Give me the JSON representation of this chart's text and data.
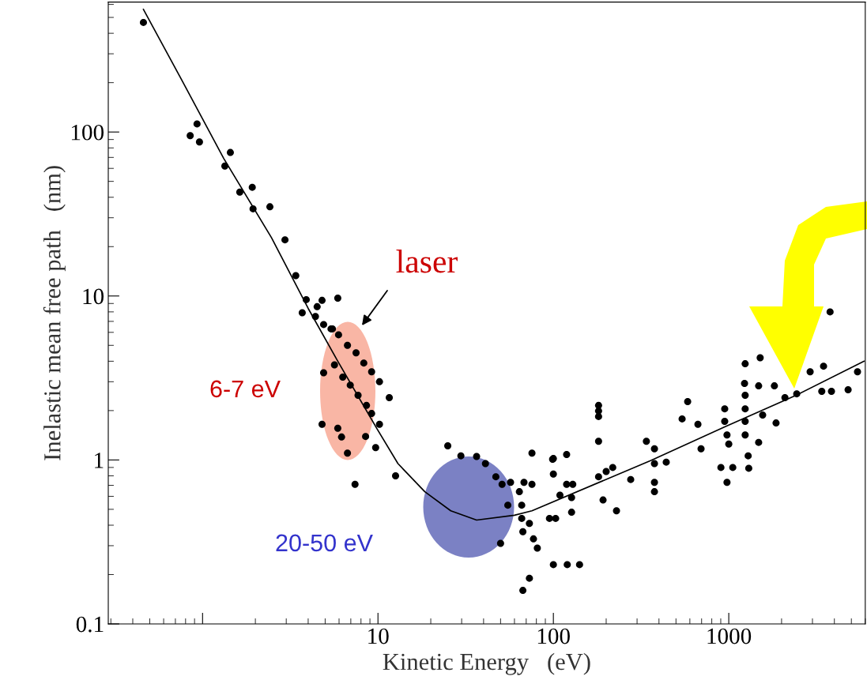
{
  "chart_data": {
    "type": "scatter",
    "xlabel": "Kinetic Energy   (eV)",
    "ylabel": "Inelastic mean free path   (nm)",
    "log": "xy",
    "xlim": [
      0.29,
      6000
    ],
    "ylim": [
      0.1,
      620
    ],
    "xticks": [
      {
        "value": 1,
        "label": null
      },
      10,
      100,
      1000
    ],
    "yticks": [
      0.1,
      1,
      10,
      100
    ],
    "grid": false,
    "legend": false,
    "marker": "circle",
    "series": [
      {
        "color": "#000000",
        "x": [
          0.46,
          0.93,
          0.85,
          0.96,
          1.44,
          1.34,
          1.63,
          1.92,
          1.94,
          2.42,
          2.95,
          3.4,
          3.9,
          3.7,
          4.8,
          5.9,
          4.5,
          4.4,
          4.9,
          5.4,
          5.5,
          5.96,
          6.7,
          7.5,
          8.3,
          9.2,
          10.2,
          11.6,
          4.9,
          5.65,
          6.3,
          6.95,
          7.7,
          8.6,
          9.2,
          10.2,
          4.8,
          5.9,
          6.2,
          8.5,
          6.7,
          9.7,
          7.4,
          12.6,
          25,
          29.7,
          36.5,
          41,
          47,
          51,
          55,
          50,
          57,
          64,
          66,
          66,
          67,
          68,
          75.5,
          73,
          77,
          81,
          75.5,
          100,
          120,
          141,
          73,
          67,
          100,
          119,
          100,
          119,
          129,
          109,
          127,
          95,
          103,
          127,
          181,
          181,
          192,
          181,
          99,
          181,
          181,
          200,
          218,
          229,
          276,
          339,
          377,
          377,
          440,
          377,
          377,
          583,
          542,
          667,
          695,
          948,
          948,
          977,
          1000,
          902,
          1054,
          977,
          1230,
          1240,
          1240,
          1240,
          1240,
          1290,
          1300,
          1480,
          1560,
          1480,
          1820,
          1860,
          2090,
          2440,
          2910,
          3470,
          3390,
          3850,
          4790,
          5420,
          1510,
          1240,
          3780
        ],
        "values": [
          466,
          112,
          95,
          87,
          75,
          62,
          43,
          46,
          34,
          35,
          22,
          13.3,
          9.5,
          7.9,
          9.4,
          9.7,
          8.6,
          7.5,
          6.7,
          6.3,
          6.3,
          5.8,
          5.0,
          4.5,
          3.9,
          3.45,
          3.0,
          2.4,
          3.4,
          3.8,
          3.2,
          2.86,
          2.48,
          2.15,
          1.92,
          1.65,
          1.65,
          1.56,
          1.38,
          1.39,
          1.1,
          1.19,
          0.71,
          0.8,
          1.22,
          1.06,
          1.05,
          0.95,
          0.79,
          0.71,
          0.53,
          0.31,
          0.73,
          0.64,
          0.53,
          0.44,
          0.365,
          0.73,
          0.71,
          0.41,
          0.33,
          0.29,
          1.1,
          0.23,
          0.23,
          0.23,
          0.19,
          0.16,
          1.02,
          1.08,
          0.82,
          0.71,
          0.71,
          0.61,
          0.59,
          0.44,
          0.44,
          0.48,
          1.99,
          1.3,
          0.57,
          0.79,
          1.01,
          2.15,
          1.84,
          0.85,
          0.9,
          0.49,
          0.76,
          1.3,
          1.17,
          0.95,
          0.97,
          0.73,
          0.64,
          2.27,
          1.78,
          1.65,
          1.17,
          2.05,
          1.72,
          1.42,
          1.25,
          0.9,
          0.9,
          0.73,
          2.93,
          2.48,
          2.05,
          1.72,
          1.42,
          1.06,
          0.89,
          2.83,
          1.88,
          1.28,
          2.83,
          1.68,
          2.4,
          2.53,
          3.45,
          3.73,
          2.62,
          2.62,
          2.68,
          3.45,
          4.2,
          3.86,
          8.0
        ]
      },
      {
        "type": "line",
        "color": "#000000",
        "marker": "none",
        "line_style": "solid",
        "x": [
          0.46,
          0.76,
          1.32,
          2.47,
          4.0,
          5.9,
          9.9,
          13,
          18.5,
          26,
          36.5,
          60,
          75.5,
          358,
          948,
          2420,
          5900
        ],
        "values": [
          560,
          208,
          69,
          22.7,
          8.4,
          4.0,
          1.54,
          0.95,
          0.64,
          0.49,
          0.43,
          0.46,
          0.49,
          0.99,
          1.59,
          2.48,
          4.0
        ]
      }
    ],
    "annotations": [
      "laser",
      "6-7 eV",
      "20-50 eV"
    ]
  }
}
